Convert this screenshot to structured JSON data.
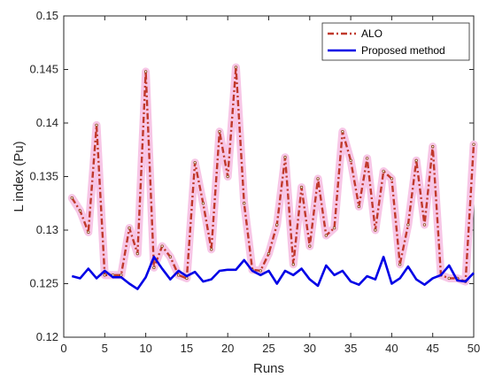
{
  "chart_data": {
    "type": "line",
    "xlabel": "Runs",
    "ylabel": "L index (Pu)",
    "xlim": [
      0,
      50
    ],
    "ylim": [
      0.12,
      0.15
    ],
    "xticks": [
      0,
      5,
      10,
      15,
      20,
      25,
      30,
      35,
      40,
      45,
      50
    ],
    "yticks": [
      0.12,
      0.125,
      0.13,
      0.135,
      0.14,
      0.145,
      0.15
    ],
    "ytick_labels": [
      "0.12",
      "0.125",
      "0.13",
      "0.135",
      "0.14",
      "0.145",
      "0.15"
    ],
    "grid": false,
    "legend_position": "top-right",
    "x": [
      1,
      2,
      3,
      4,
      5,
      6,
      7,
      8,
      9,
      10,
      11,
      12,
      13,
      14,
      15,
      16,
      17,
      18,
      19,
      20,
      21,
      22,
      23,
      24,
      25,
      26,
      27,
      28,
      29,
      30,
      31,
      32,
      33,
      34,
      35,
      36,
      37,
      38,
      39,
      40,
      41,
      42,
      43,
      44,
      45,
      46,
      47,
      48,
      49,
      50
    ],
    "series": [
      {
        "name": "ALO",
        "color": "#c0392b",
        "line_style": "dash-dot",
        "values": [
          0.133,
          0.1318,
          0.1298,
          0.1398,
          0.1258,
          0.1258,
          0.1258,
          0.1302,
          0.1278,
          0.1448,
          0.1265,
          0.1285,
          0.1275,
          0.1258,
          0.1255,
          0.1363,
          0.1325,
          0.1282,
          0.1392,
          0.135,
          0.1452,
          0.1325,
          0.1263,
          0.1262,
          0.1278,
          0.1305,
          0.1368,
          0.1268,
          0.134,
          0.1285,
          0.1348,
          0.1295,
          0.1302,
          0.1392,
          0.1365,
          0.1322,
          0.1367,
          0.13,
          0.1355,
          0.1348,
          0.1268,
          0.1305,
          0.1365,
          0.1305,
          0.1378,
          0.1258,
          0.1255,
          0.1255,
          0.1252,
          0.138
        ]
      },
      {
        "name": "Proposed method",
        "color": "#0000e6",
        "line_style": "solid",
        "values": [
          0.1257,
          0.1255,
          0.1264,
          0.1255,
          0.1262,
          0.1256,
          0.1256,
          0.125,
          0.1245,
          0.1256,
          0.1275,
          0.1264,
          0.1254,
          0.1262,
          0.1257,
          0.1261,
          0.1252,
          0.1254,
          0.1262,
          0.1263,
          0.1263,
          0.1272,
          0.1262,
          0.1258,
          0.1262,
          0.125,
          0.1262,
          0.1258,
          0.1264,
          0.1254,
          0.1248,
          0.1267,
          0.1258,
          0.1262,
          0.1252,
          0.1249,
          0.1257,
          0.1254,
          0.1275,
          0.125,
          0.1255,
          0.1266,
          0.1254,
          0.1249,
          0.1255,
          0.1258,
          0.1267,
          0.1253,
          0.1252,
          0.126
        ]
      }
    ]
  }
}
